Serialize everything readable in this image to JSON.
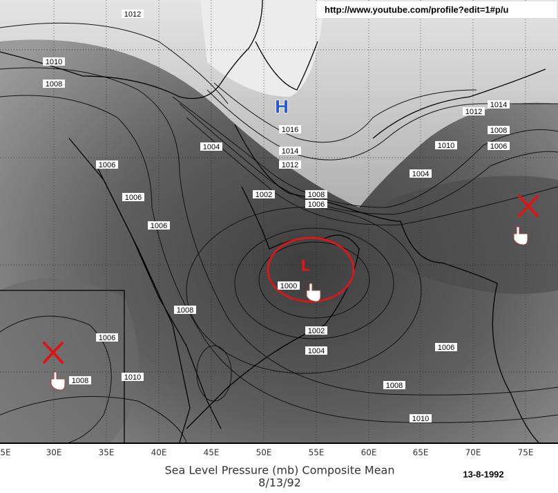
{
  "url": "http://www.youtube.com/profile?edit=1#p/u",
  "highs": [
    "H"
  ],
  "lows": [
    "L"
  ],
  "contour_labels": [
    "1012",
    "1010",
    "1008",
    "1006",
    "1006",
    "1006",
    "1004",
    "1002",
    "1016",
    "1014",
    "1012",
    "1008",
    "1006",
    "1012",
    "1014",
    "1008",
    "1010",
    "1006",
    "1004",
    "1000",
    "1002",
    "1004",
    "1008",
    "1006",
    "1008",
    "1010",
    "1006",
    "1008",
    "1010"
  ],
  "longitude_labels": [
    "5E",
    "30E",
    "35E",
    "40E",
    "45E",
    "50E",
    "55E",
    "60E",
    "65E",
    "70E",
    "75E"
  ],
  "title": "Sea Level Pressure (mb) Composite Mean",
  "date": "8/13/92",
  "stamp": "13-8-1992"
}
